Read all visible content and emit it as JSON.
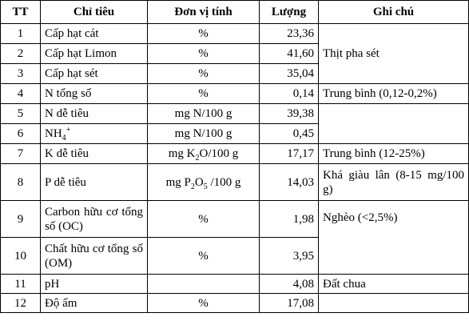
{
  "headers": [
    "TT",
    "Chỉ tiêu",
    "Đơn vị tính",
    "Lượng",
    "Ghi chú"
  ],
  "rows": [
    {
      "tt": "1",
      "name": "Cấp hạt cát",
      "unit": "%",
      "value": "23,36"
    },
    {
      "tt": "2",
      "name": "Cấp hạt Limon",
      "unit": "%",
      "value": "41,60"
    },
    {
      "tt": "3",
      "name": "Cấp hạt sét",
      "unit": "%",
      "value": "35,04"
    },
    {
      "tt": "4",
      "name": "N tổng số",
      "unit": "%",
      "value": "0,14",
      "note": "Trung bình (0,12-0,2%)"
    },
    {
      "tt": "5",
      "name": "N dễ tiêu",
      "unit": "mg N/100 g",
      "value": "39,38",
      "note": ""
    },
    {
      "tt": "6",
      "name_main": "NH",
      "name_sub": "4",
      "name_sup": "+",
      "unit": "mg N/100 g",
      "value": "0,45"
    },
    {
      "tt": "7",
      "name": "K dễ tiêu",
      "unit_pre": "mg K",
      "unit_sub": "2",
      "unit_post": "O/100 g",
      "value": "17,17",
      "note": "Trung bình (12-25%)"
    },
    {
      "tt": "8",
      "name": "P dễ tiêu",
      "unit_pre": "mg P",
      "unit_sub1": "2",
      "unit_mid": "O",
      "unit_sub2": "5",
      "unit_post": " /100 g",
      "value": "14,03",
      "note": "Khá giàu lân (8-15 mg/100 g)"
    },
    {
      "tt": "9",
      "name": "Carbon hữu cơ tổng số (OC)",
      "unit": "%",
      "value": "1,98",
      "note": "Nghèo (<2,5%)"
    },
    {
      "tt": "10",
      "name": "Chất hữu cơ tổng số (OM)",
      "unit": "%",
      "value": "3,95"
    },
    {
      "tt": "11",
      "name": "pH",
      "unit": "",
      "value": "4,08",
      "note": "Đất chua"
    },
    {
      "tt": "12",
      "name": "Độ ẩm",
      "unit": "%",
      "value": "17,08",
      "note": ""
    }
  ],
  "merged_note_rows_1_3": "Thịt pha sét",
  "merged_note_rows_5_6": "",
  "merged_note_rows_9_10": "Nghèo (<2,5%)"
}
